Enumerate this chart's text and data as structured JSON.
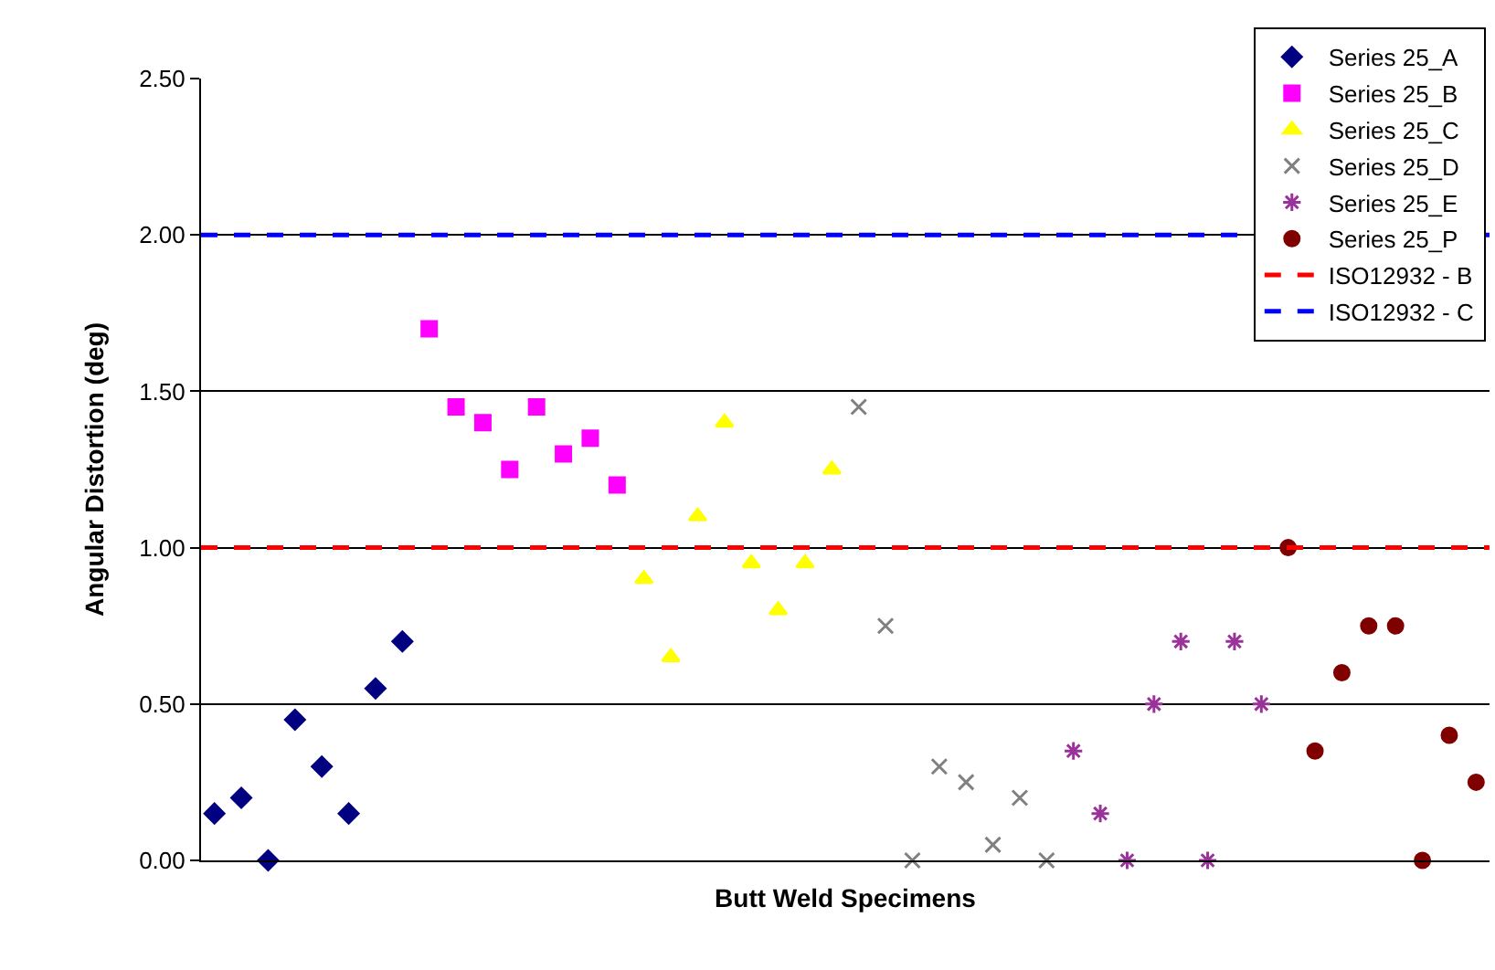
{
  "chart_data": {
    "type": "scatter",
    "xlabel": "Butt Weld Specimens",
    "ylabel": "Angular Distortion (deg)",
    "categories": [
      null,
      null,
      null,
      null,
      null,
      null,
      null,
      null,
      null,
      null,
      null,
      null,
      null,
      null,
      null,
      null,
      null,
      null,
      null,
      null,
      null,
      null,
      null,
      null,
      null,
      null,
      null,
      null,
      null,
      null,
      null,
      null,
      null,
      null,
      null,
      null,
      null,
      null,
      null,
      null,
      null,
      null,
      null,
      null,
      null,
      null,
      null,
      null
    ],
    "series": [
      {
        "name": "Series 25_A",
        "color": "#000080",
        "marker": "diamond",
        "values": [
          0.15,
          0.2,
          0,
          0.45,
          0.3,
          0.15,
          0.55,
          0.7,
          null,
          null,
          null,
          null,
          null,
          null,
          null,
          null,
          null,
          null,
          null,
          null,
          null,
          null,
          null,
          null,
          null,
          null,
          null,
          null,
          null,
          null,
          null,
          null,
          null,
          null,
          null,
          null,
          null,
          null,
          null,
          null,
          null,
          null,
          null,
          null,
          null,
          null,
          null,
          null
        ]
      },
      {
        "name": "Series 25_B",
        "color": "#ff00ff",
        "marker": "square",
        "values": [
          null,
          null,
          null,
          null,
          null,
          null,
          null,
          null,
          1.7,
          1.45,
          1.4,
          1.25,
          1.45,
          1.3,
          1.35,
          1.2,
          null,
          null,
          null,
          null,
          null,
          null,
          null,
          null,
          null,
          null,
          null,
          null,
          null,
          null,
          null,
          null,
          null,
          null,
          null,
          null,
          null,
          null,
          null,
          null,
          null,
          null,
          null,
          null,
          null,
          null,
          null,
          null
        ]
      },
      {
        "name": "Series 25_C",
        "color": "#ffff00",
        "marker": "triangle",
        "values": [
          null,
          null,
          null,
          null,
          null,
          null,
          null,
          null,
          null,
          null,
          null,
          null,
          null,
          null,
          null,
          null,
          0.9,
          0.65,
          1.1,
          1.4,
          0.95,
          0.8,
          0.95,
          1.25,
          null,
          null,
          null,
          null,
          null,
          null,
          null,
          null,
          null,
          null,
          null,
          null,
          null,
          null,
          null,
          null,
          null,
          null,
          null,
          null,
          null,
          null,
          null,
          null
        ]
      },
      {
        "name": "Series 25_D",
        "color": "#808080",
        "marker": "cross",
        "values": [
          null,
          null,
          null,
          null,
          null,
          null,
          null,
          null,
          null,
          null,
          null,
          null,
          null,
          null,
          null,
          null,
          null,
          null,
          null,
          null,
          null,
          null,
          null,
          null,
          1.45,
          0.75,
          0,
          0.3,
          0.25,
          0.05,
          0.2,
          0,
          null,
          null,
          null,
          null,
          null,
          null,
          null,
          null,
          null,
          null,
          null,
          null,
          null,
          null,
          null,
          null
        ]
      },
      {
        "name": "Series 25_E",
        "color": "#993399",
        "marker": "cross",
        "values": [
          null,
          null,
          null,
          null,
          null,
          null,
          null,
          null,
          null,
          null,
          null,
          null,
          null,
          null,
          null,
          null,
          null,
          null,
          null,
          null,
          null,
          null,
          null,
          null,
          null,
          null,
          null,
          null,
          null,
          null,
          null,
          null,
          0.35,
          0.15,
          0,
          0.5,
          0.7,
          0,
          0.7,
          0.5,
          null,
          null,
          null,
          null,
          null,
          null,
          null,
          null
        ]
      },
      {
        "name": "Series 25_P",
        "color": "#800000",
        "marker": "circle",
        "values": [
          null,
          null,
          null,
          null,
          null,
          null,
          null,
          null,
          null,
          null,
          null,
          null,
          null,
          null,
          null,
          null,
          null,
          null,
          null,
          null,
          null,
          null,
          null,
          null,
          null,
          null,
          null,
          null,
          null,
          null,
          null,
          null,
          null,
          null,
          null,
          null,
          null,
          null,
          null,
          null,
          1.0,
          0.35,
          0.6,
          0.75,
          0.75,
          0,
          0.4,
          0.25
        ]
      }
    ],
    "ref_lines": [
      {
        "axis": "y",
        "value": 1.0,
        "label": "ISO12932 - B",
        "color": "#ff0000",
        "line_style": "dashed"
      },
      {
        "axis": "y",
        "value": 2.0,
        "label": "ISO12932 - C",
        "color": "#0000ff",
        "line_style": "dashed"
      }
    ],
    "ylim": [
      0,
      2.5
    ],
    "yticks": [
      {
        "value": 0,
        "label": "0.00"
      },
      {
        "value": 0.5,
        "label": "0.50"
      },
      {
        "value": 1.0,
        "label": "1.00"
      },
      {
        "value": 1.5,
        "label": "1.50"
      },
      {
        "value": 2.0,
        "label": "2.00"
      },
      {
        "value": 2.5,
        "label": "2.50"
      }
    ],
    "grid": "y",
    "legend": "top right",
    "tick_labels": "y"
  }
}
